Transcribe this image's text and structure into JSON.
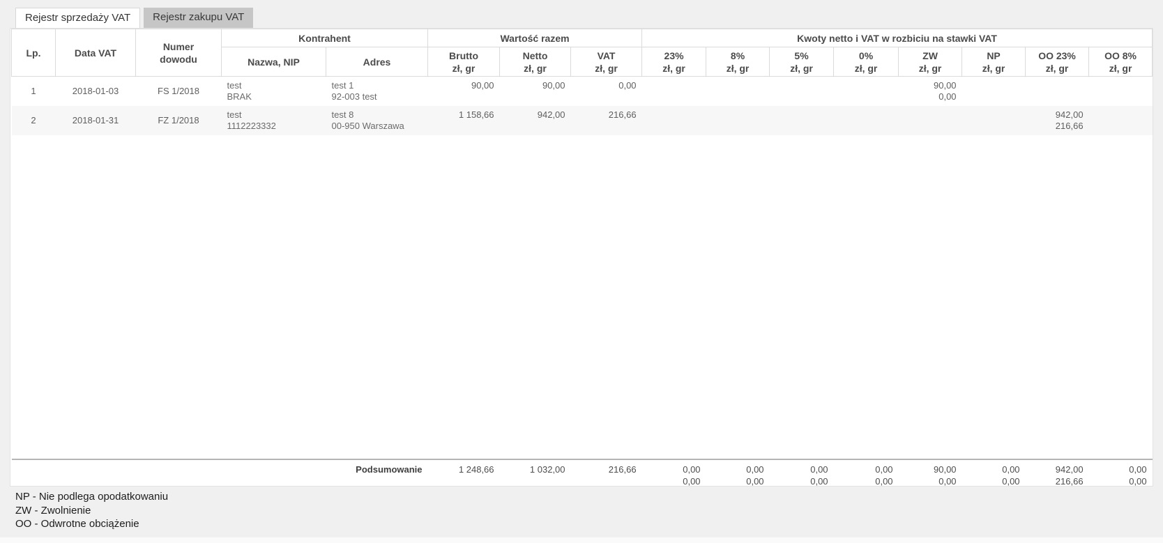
{
  "tabs": [
    {
      "label": "Rejestr sprzedaży VAT",
      "active": true
    },
    {
      "label": "Rejestr zakupu VAT",
      "active": false
    }
  ],
  "table": {
    "groups": [
      {
        "label": "Kontrahent"
      },
      {
        "label": "Wartość razem"
      },
      {
        "label": "Kwoty netto i VAT w rozbiciu na stawki VAT"
      }
    ],
    "columns": [
      {
        "id": "lp",
        "label": "Lp."
      },
      {
        "id": "data_vat",
        "label": "Data VAT"
      },
      {
        "id": "numer_dowodu",
        "label": "Numer\ndowodu"
      },
      {
        "id": "nazwa_nip",
        "label": "Nazwa, NIP"
      },
      {
        "id": "adres",
        "label": "Adres"
      },
      {
        "id": "brutto",
        "label": "Brutto",
        "sub": "zł, gr"
      },
      {
        "id": "netto",
        "label": "Netto",
        "sub": "zł, gr"
      },
      {
        "id": "vat",
        "label": "VAT",
        "sub": "zł, gr"
      },
      {
        "id": "s23",
        "label": "23%",
        "sub": "zł, gr"
      },
      {
        "id": "s8",
        "label": "8%",
        "sub": "zł, gr"
      },
      {
        "id": "s5",
        "label": "5%",
        "sub": "zł, gr"
      },
      {
        "id": "s0",
        "label": "0%",
        "sub": "zł, gr"
      },
      {
        "id": "zw",
        "label": "ZW",
        "sub": "zł, gr"
      },
      {
        "id": "np",
        "label": "NP",
        "sub": "zł, gr"
      },
      {
        "id": "oo23",
        "label": "OO 23%",
        "sub": "zł, gr"
      },
      {
        "id": "oo8",
        "label": "OO 8%",
        "sub": "zł, gr"
      }
    ],
    "rows": [
      {
        "lp": "1",
        "data_vat": "2018-01-03",
        "numer_dowodu": "FS 1/2018",
        "nazwa_nip": [
          "test",
          "BRAK"
        ],
        "adres": [
          "test 1",
          "92-003 test"
        ],
        "brutto": "90,00",
        "netto": "90,00",
        "vat": "0,00",
        "s23": [],
        "s8": [],
        "s5": [],
        "s0": [],
        "zw": [
          "90,00",
          "0,00"
        ],
        "np": [],
        "oo23": [],
        "oo8": []
      },
      {
        "lp": "2",
        "data_vat": "2018-01-31",
        "numer_dowodu": "FZ 1/2018",
        "nazwa_nip": [
          "test",
          "1112223332"
        ],
        "adres": [
          "test 8",
          "00-950 Warszawa"
        ],
        "brutto": "1 158,66",
        "netto": "942,00",
        "vat": "216,66",
        "s23": [],
        "s8": [],
        "s5": [],
        "s0": [],
        "zw": [],
        "np": [],
        "oo23": [
          "942,00",
          "216,66"
        ],
        "oo8": []
      }
    ],
    "summary": {
      "label": "Podsumowanie",
      "brutto": "1 248,66",
      "netto": "1 032,00",
      "vat": "216,66",
      "s23": [
        "0,00",
        "0,00"
      ],
      "s8": [
        "0,00",
        "0,00"
      ],
      "s5": [
        "0,00",
        "0,00"
      ],
      "s0": [
        "0,00",
        "0,00"
      ],
      "zw": [
        "90,00",
        "0,00"
      ],
      "np": [
        "0,00",
        "0,00"
      ],
      "oo23": [
        "942,00",
        "216,66"
      ],
      "oo8": [
        "0,00",
        "0,00"
      ]
    }
  },
  "legend": {
    "items": [
      "NP - Nie podlega opodatkowaniu",
      "ZW - Zwolnienie",
      "OO - Odwrotne obciążenie"
    ]
  },
  "colors": {
    "page_bg": "#f0f0f0",
    "panel_bg": "#ffffff",
    "inactive_tab_bg": "#c6c6c6",
    "header_border": "#dadada",
    "stripe": "#f7f7f7",
    "summary_border": "#b5b5b5"
  }
}
